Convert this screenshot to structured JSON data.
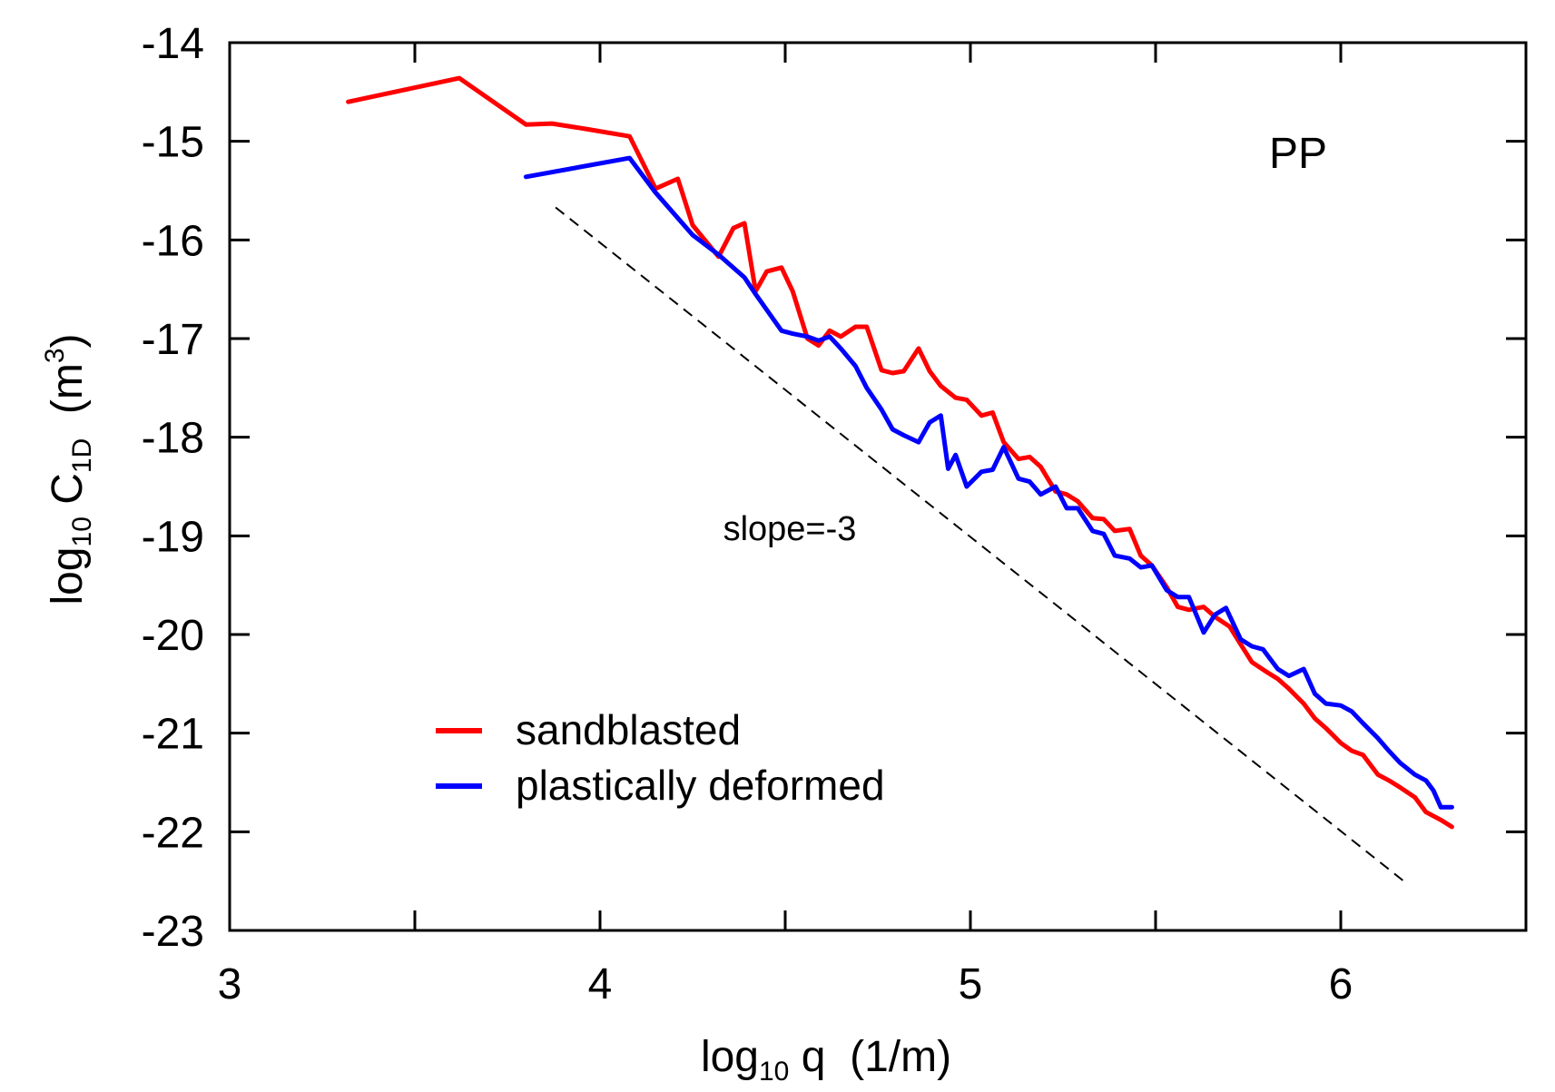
{
  "chart_data": {
    "type": "line",
    "panel_label": "PP",
    "xlabel": {
      "base": "log",
      "sub": "10",
      "rest": " q  (1/m)"
    },
    "ylabel": {
      "base": "log",
      "sub": "10",
      "mid": " C",
      "sub2": "1D",
      "rest": "  (m",
      "sup": "3",
      "end": ")"
    },
    "xlim": [
      3,
      6.5
    ],
    "ylim": [
      -23,
      -14
    ],
    "xticks": [
      3,
      4,
      5,
      6
    ],
    "xtick_labels": [
      "3",
      "4",
      "5",
      "6"
    ],
    "xticks_minor": [
      3.5,
      4.5,
      5.5
    ],
    "yticks": [
      -14,
      -15,
      -16,
      -17,
      -18,
      -19,
      -20,
      -21,
      -22,
      -23
    ],
    "ytick_labels": [
      "-14",
      "-15",
      "-16",
      "-17",
      "-18",
      "-19",
      "-20",
      "-21",
      "-22",
      "-23"
    ],
    "annotation": {
      "text": "slope=-3"
    },
    "reference_line": {
      "name": "slope=-3",
      "x": [
        3.88,
        6.17
      ],
      "y": [
        -15.67,
        -22.5
      ],
      "color": "#000000",
      "style": "dashed"
    },
    "series": [
      {
        "name": "sandblasted",
        "color": "#ff0000",
        "x": [
          3.32,
          3.62,
          3.8,
          3.87,
          3.97,
          4.08,
          4.15,
          4.21,
          4.25,
          4.32,
          4.36,
          4.39,
          4.42,
          4.45,
          4.49,
          4.52,
          4.56,
          4.59,
          4.62,
          4.65,
          4.69,
          4.72,
          4.76,
          4.79,
          4.82,
          4.86,
          4.89,
          4.92,
          4.96,
          4.99,
          5.03,
          5.06,
          5.09,
          5.13,
          5.16,
          5.19,
          5.23,
          5.26,
          5.29,
          5.33,
          5.36,
          5.39,
          5.43,
          5.46,
          5.49,
          5.53,
          5.56,
          5.59,
          5.63,
          5.66,
          5.7,
          5.73,
          5.76,
          5.8,
          5.83,
          5.86,
          5.9,
          5.93,
          5.96,
          6.0,
          6.03,
          6.06,
          6.1,
          6.13,
          6.16,
          6.2,
          6.23,
          6.27,
          6.3
        ],
        "y": [
          -14.6,
          -14.36,
          -14.83,
          -14.82,
          -14.88,
          -14.95,
          -15.48,
          -15.38,
          -15.85,
          -16.17,
          -15.88,
          -15.83,
          -16.52,
          -16.32,
          -16.28,
          -16.52,
          -17.0,
          -17.07,
          -16.92,
          -16.98,
          -16.88,
          -16.88,
          -17.32,
          -17.35,
          -17.33,
          -17.1,
          -17.33,
          -17.48,
          -17.6,
          -17.62,
          -17.78,
          -17.75,
          -18.05,
          -18.22,
          -18.2,
          -18.3,
          -18.55,
          -18.58,
          -18.65,
          -18.82,
          -18.83,
          -18.95,
          -18.93,
          -19.2,
          -19.3,
          -19.52,
          -19.72,
          -19.75,
          -19.72,
          -19.82,
          -19.92,
          -20.1,
          -20.28,
          -20.38,
          -20.45,
          -20.55,
          -20.7,
          -20.85,
          -20.95,
          -21.1,
          -21.18,
          -21.22,
          -21.42,
          -21.48,
          -21.55,
          -21.65,
          -21.8,
          -21.88,
          -21.95
        ]
      },
      {
        "name": "plastically deformed",
        "color": "#0000ff",
        "x": [
          3.8,
          4.08,
          4.15,
          4.25,
          4.32,
          4.39,
          4.42,
          4.49,
          4.52,
          4.56,
          4.59,
          4.62,
          4.65,
          4.69,
          4.72,
          4.76,
          4.79,
          4.82,
          4.86,
          4.89,
          4.92,
          4.94,
          4.96,
          4.99,
          5.03,
          5.06,
          5.09,
          5.13,
          5.16,
          5.19,
          5.23,
          5.26,
          5.29,
          5.33,
          5.36,
          5.39,
          5.43,
          5.46,
          5.49,
          5.53,
          5.56,
          5.59,
          5.63,
          5.66,
          5.69,
          5.73,
          5.76,
          5.79,
          5.83,
          5.86,
          5.9,
          5.93,
          5.96,
          6.0,
          6.03,
          6.06,
          6.1,
          6.13,
          6.16,
          6.2,
          6.23,
          6.25,
          6.27,
          6.3
        ],
        "y": [
          -15.36,
          -15.17,
          -15.52,
          -15.95,
          -16.15,
          -16.38,
          -16.55,
          -16.92,
          -16.95,
          -16.98,
          -17.02,
          -16.98,
          -17.1,
          -17.28,
          -17.5,
          -17.72,
          -17.92,
          -17.98,
          -18.05,
          -17.85,
          -17.78,
          -18.32,
          -18.18,
          -18.5,
          -18.35,
          -18.33,
          -18.1,
          -18.42,
          -18.45,
          -18.58,
          -18.5,
          -18.72,
          -18.72,
          -18.95,
          -18.98,
          -19.2,
          -19.23,
          -19.32,
          -19.3,
          -19.55,
          -19.62,
          -19.62,
          -19.98,
          -19.8,
          -19.73,
          -20.05,
          -20.12,
          -20.15,
          -20.35,
          -20.42,
          -20.35,
          -20.6,
          -20.7,
          -20.72,
          -20.78,
          -20.9,
          -21.05,
          -21.18,
          -21.3,
          -21.42,
          -21.48,
          -21.58,
          -21.75,
          -21.75
        ]
      }
    ],
    "legend": {
      "location": "bottom-left",
      "entries": [
        "sandblasted",
        "plastically deformed"
      ]
    }
  }
}
